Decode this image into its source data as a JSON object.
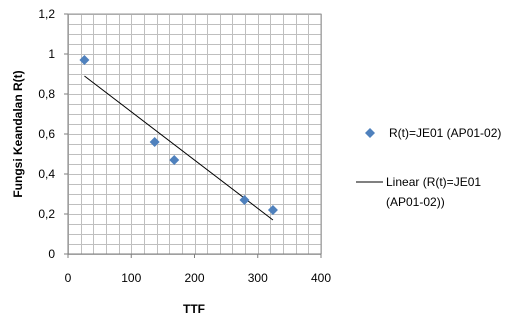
{
  "chart_data": {
    "type": "scatter",
    "title": "",
    "xlabel": "TTF",
    "ylabel": "Fungsi Keandalan R(t)",
    "xlim": [
      0,
      400
    ],
    "ylim": [
      0,
      1.2
    ],
    "x_ticks": [
      "0",
      "100",
      "200",
      "300",
      "400"
    ],
    "y_ticks": [
      "0",
      "0,2",
      "0,4",
      "0,6",
      "0,8",
      "1",
      "1,2"
    ],
    "grid": true,
    "legend_position": "right",
    "series": [
      {
        "name": "R(t)=JE01 (AP01-02)",
        "marker": "diamond",
        "color": "#4f81bd",
        "x": [
          26,
          137,
          168,
          279,
          324
        ],
        "y": [
          0.97,
          0.56,
          0.47,
          0.27,
          0.22
        ]
      }
    ],
    "trendline": {
      "name_lines": [
        "Linear (R(t)=JE01",
        "(AP01-02))"
      ],
      "type": "linear",
      "color": "#000000",
      "x": [
        26,
        324
      ],
      "y": [
        0.89,
        0.17
      ]
    }
  }
}
